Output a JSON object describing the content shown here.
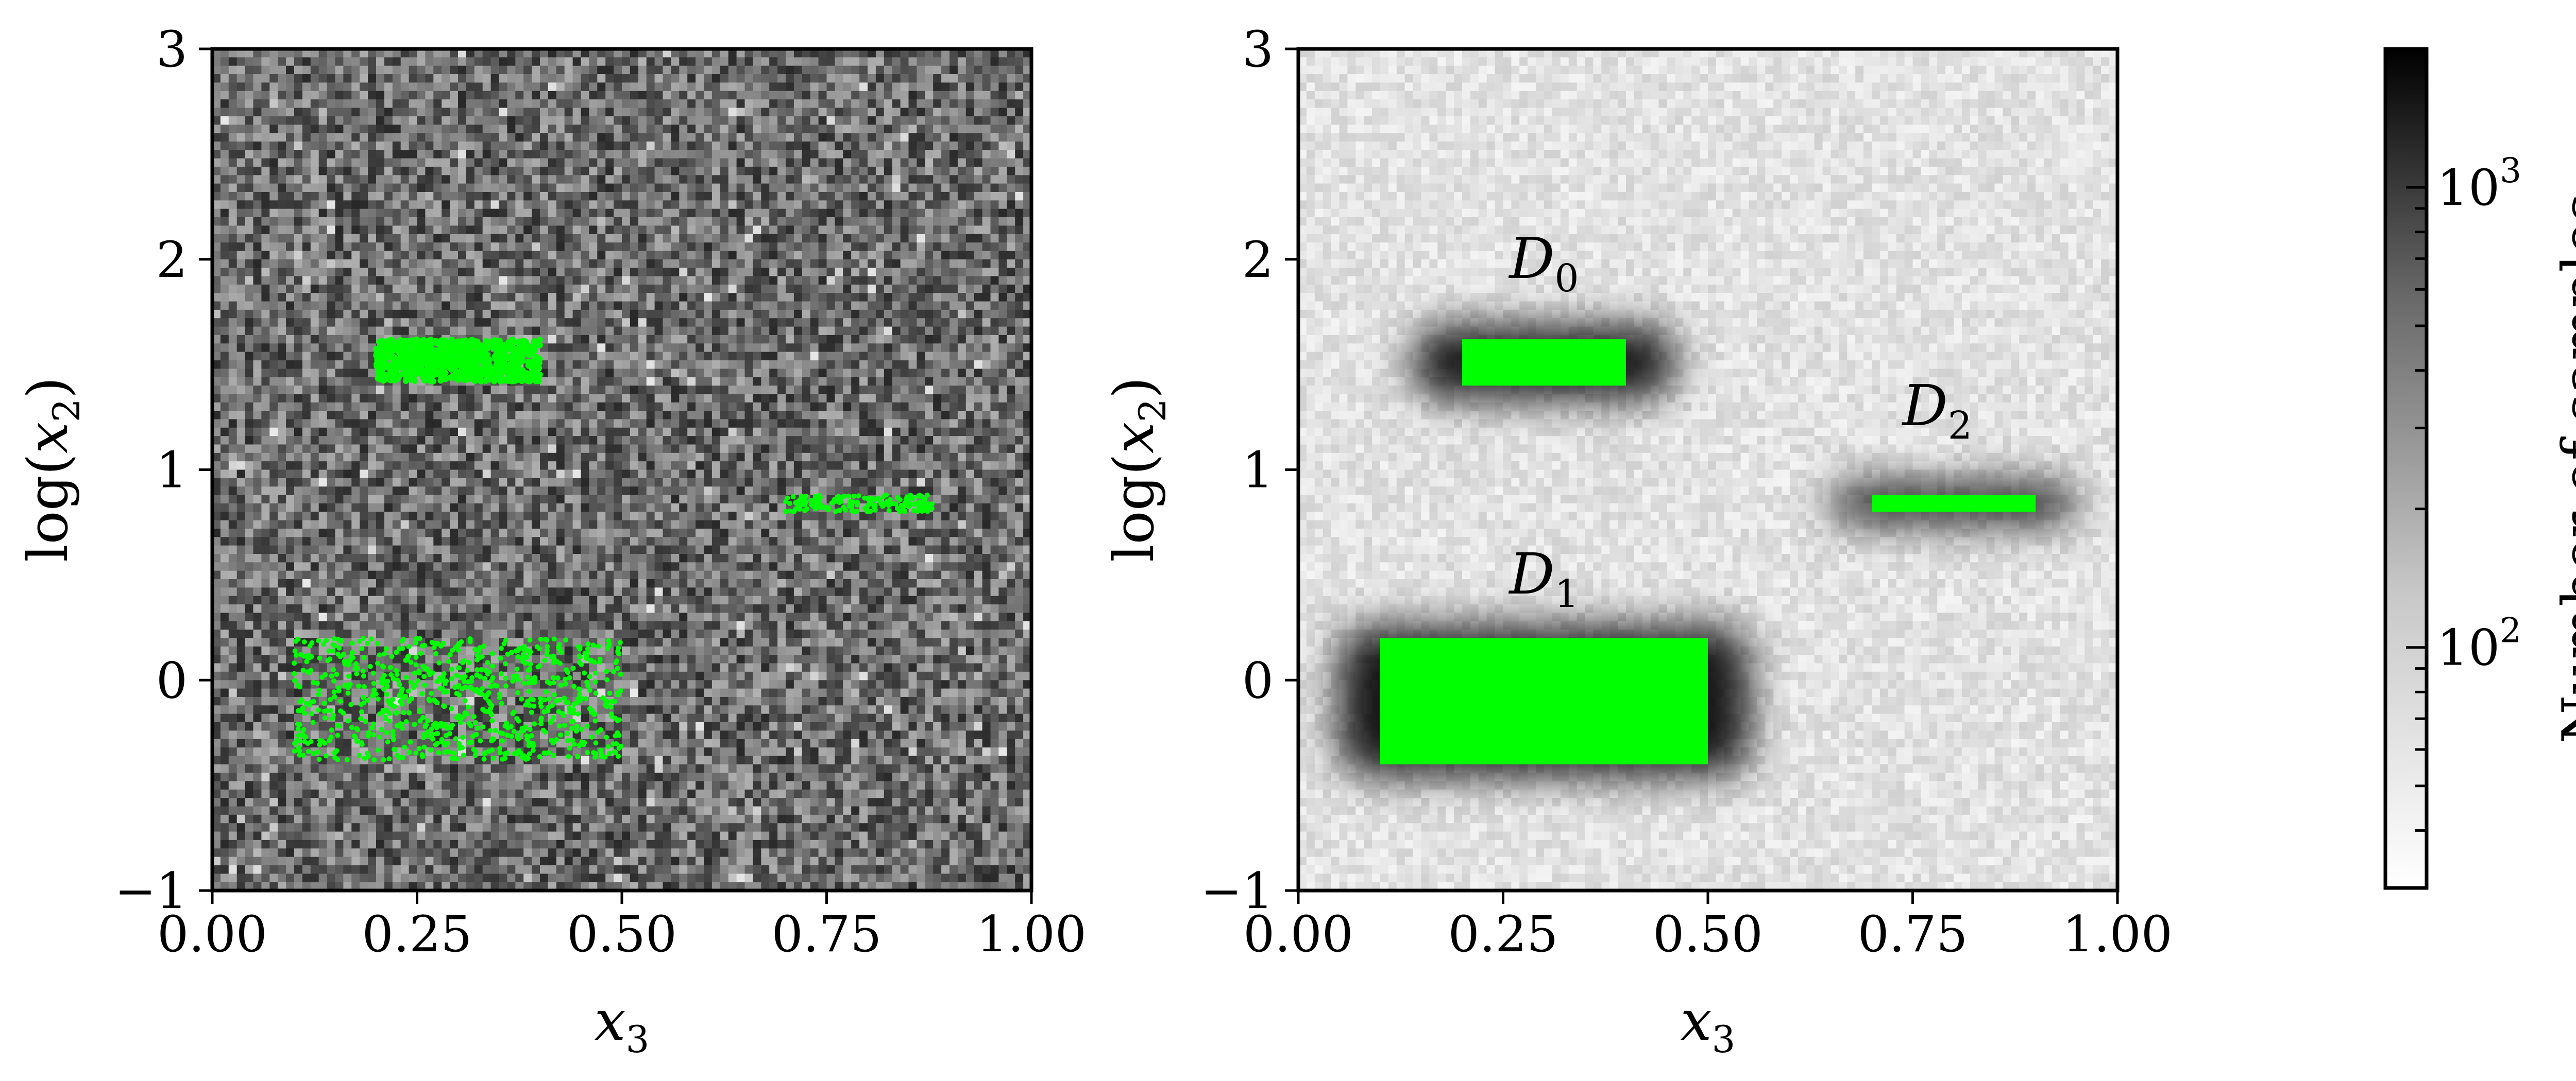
{
  "colors": {
    "highlight": "#00ff00",
    "frame": "#000000",
    "cmap_low": "#ffffff",
    "cmap_high": "#000000"
  },
  "chart_data": [
    {
      "type": "heatmap",
      "panel": "left",
      "xlabel": "x",
      "xlabel_sub": "3",
      "ylabel_prefix": "log(",
      "ylabel_var": "x",
      "ylabel_sub": "2",
      "ylabel_suffix": ")",
      "xlim": [
        0.0,
        1.0
      ],
      "ylim": [
        -1,
        3
      ],
      "xticks": [
        "0.00",
        "0.25",
        "0.50",
        "0.75",
        "1.00"
      ],
      "yticks": [
        "−1",
        "0",
        "1",
        "2",
        "3"
      ],
      "grid_bins": [
        100,
        100
      ],
      "background_counts_range": [
        60,
        1000
      ],
      "highlighted_sample_regions": [
        {
          "x_range": [
            0.2,
            0.4
          ],
          "y_range": [
            1.42,
            1.62
          ],
          "density": "dense"
        },
        {
          "x_range": [
            0.1,
            0.5
          ],
          "y_range": [
            -0.38,
            0.2
          ],
          "density": "sparse"
        },
        {
          "x_range": [
            0.7,
            0.88
          ],
          "y_range": [
            0.8,
            0.88
          ],
          "density": "sparse"
        }
      ]
    },
    {
      "type": "heatmap",
      "panel": "right",
      "xlabel": "x",
      "xlabel_sub": "3",
      "ylabel_prefix": "log(",
      "ylabel_var": "x",
      "ylabel_sub": "2",
      "ylabel_suffix": ")",
      "xlim": [
        0.0,
        1.0
      ],
      "ylim": [
        -1,
        3
      ],
      "xticks": [
        "0.00",
        "0.25",
        "0.50",
        "0.75",
        "1.00"
      ],
      "yticks": [
        "−1",
        "0",
        "1",
        "2",
        "3"
      ],
      "grid_bins": [
        100,
        100
      ],
      "background_counts_range": [
        35,
        55
      ],
      "regions": [
        {
          "label": "D",
          "label_sub": "0",
          "x_range": [
            0.2,
            0.4
          ],
          "y_range": [
            1.4,
            1.62
          ],
          "label_pos": [
            0.3,
            2.0
          ],
          "halo": 0.06
        },
        {
          "label": "D",
          "label_sub": "1",
          "x_range": [
            0.1,
            0.5
          ],
          "y_range": [
            -0.4,
            0.2
          ],
          "label_pos": [
            0.3,
            0.5
          ],
          "halo": 0.05
        },
        {
          "label": "D",
          "label_sub": "2",
          "x_range": [
            0.7,
            0.9
          ],
          "y_range": [
            0.8,
            0.88
          ],
          "label_pos": [
            0.78,
            1.3
          ],
          "halo": 0.05
        }
      ]
    }
  ],
  "colorbar": {
    "label": "Number of samples",
    "scale": "log",
    "range": [
      30,
      2000
    ],
    "major_ticks": [
      {
        "base": "10",
        "exp": "2",
        "value": 100
      },
      {
        "base": "10",
        "exp": "3",
        "value": 1000
      }
    ],
    "minor_ticks": [
      40,
      50,
      60,
      70,
      80,
      90,
      200,
      300,
      400,
      500,
      600,
      700,
      800,
      900,
      2000
    ]
  }
}
